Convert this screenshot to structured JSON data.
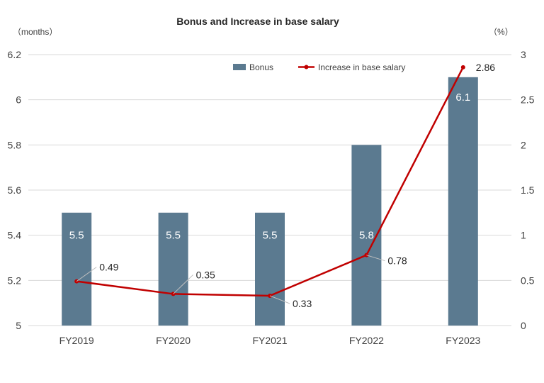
{
  "chart_data": {
    "type": "bar",
    "title": "Bonus and Increase in base salary",
    "y_left_unit": "（months）",
    "y_right_unit": "（%）",
    "categories": [
      "FY2019",
      "FY2020",
      "FY2021",
      "FY2022",
      "FY2023"
    ],
    "y_left": {
      "min": 5,
      "max": 6.2,
      "ticks": [
        "5",
        "5.2",
        "5.4",
        "5.6",
        "5.8",
        "6",
        "6.2"
      ]
    },
    "y_right": {
      "min": 0,
      "max": 3,
      "ticks": [
        "0",
        "0.5",
        "1",
        "1.5",
        "2",
        "2.5",
        "3"
      ]
    },
    "series": [
      {
        "name": "Bonus",
        "type": "bar",
        "axis": "left",
        "values": [
          5.5,
          5.5,
          5.5,
          5.8,
          6.1
        ],
        "labels": [
          "5.5",
          "5.5",
          "5.5",
          "5.8",
          "6.1"
        ]
      },
      {
        "name": "Increase in base salary",
        "type": "line",
        "axis": "right",
        "values": [
          0.49,
          0.35,
          0.33,
          0.78,
          2.86
        ],
        "labels": [
          "0.49",
          "0.35",
          "0.33",
          "0.78",
          "2.86"
        ]
      }
    ],
    "legend_position": "top-right",
    "grid": "horizontal",
    "colors": {
      "bar": "#5b7a90",
      "line": "#c00000",
      "grid": "#d9d9d9",
      "text": "#404040"
    }
  }
}
